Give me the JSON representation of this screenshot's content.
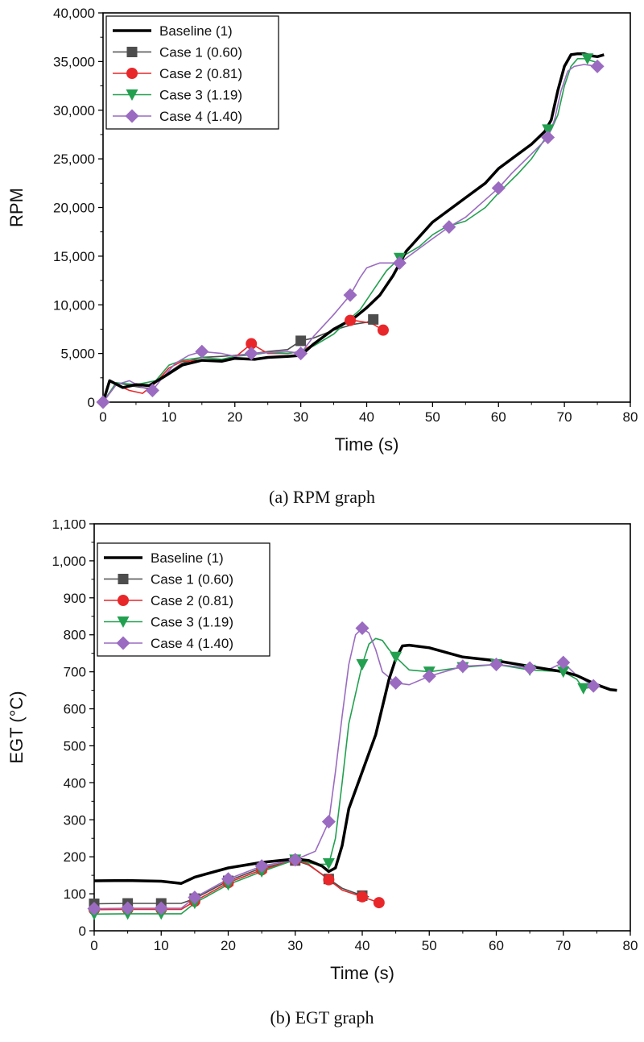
{
  "figures": [
    {
      "caption": "(a)  RPM  graph",
      "chart_data": {
        "type": "line",
        "xlabel": "Time (s)",
        "ylabel": "RPM",
        "xlim": [
          0,
          80
        ],
        "ylim": [
          0,
          40000
        ],
        "xticks": [
          0,
          10,
          20,
          30,
          40,
          50,
          60,
          70,
          80
        ],
        "yticks": [
          0,
          5000,
          10000,
          15000,
          20000,
          25000,
          30000,
          35000,
          40000
        ],
        "ytick_labels": [
          "0",
          "5,000",
          "10,000",
          "15,000",
          "20,000",
          "25,000",
          "30,000",
          "35,000",
          "40,000"
        ],
        "legend_position": "top-left",
        "grid": false,
        "series": [
          {
            "name": "Baseline (1)",
            "color": "#000000",
            "marker": "none",
            "x": [
              0,
              1,
              3,
              5,
              7,
              9,
              12,
              15,
              18,
              20,
              23,
              25,
              28,
              30,
              32,
              35,
              38,
              40,
              42,
              44,
              46,
              48,
              50,
              52,
              55,
              58,
              60,
              62,
              65,
              67,
              68,
              69,
              70,
              71,
              72,
              73,
              74,
              75,
              76
            ],
            "y": [
              0,
              2200,
              1500,
              1800,
              1700,
              2500,
              3800,
              4300,
              4200,
              4500,
              4400,
              4600,
              4700,
              4800,
              6000,
              7500,
              8600,
              9700,
              11000,
              13000,
              15500,
              17000,
              18500,
              19500,
              21000,
              22500,
              24000,
              25000,
              26500,
              27800,
              29000,
              32000,
              34500,
              35700,
              35800,
              35800,
              35600,
              35500,
              35700
            ]
          },
          {
            "name": "Case 1 (0.60)",
            "color": "#4d4d4d",
            "marker": "square",
            "x": [
              0,
              2,
              5,
              7,
              9,
              12,
              15,
              18,
              20,
              23,
              25,
              28,
              30,
              32,
              35,
              38,
              40,
              41
            ],
            "y": [
              0,
              2000,
              1600,
              1400,
              2600,
              4000,
              4600,
              4700,
              4800,
              5000,
              5200,
              5400,
              6300,
              6600,
              7400,
              8000,
              8200,
              8500
            ],
            "marker_x": [
              30,
              41
            ],
            "marker_y": [
              6300,
              8500
            ]
          },
          {
            "name": "Case 2 (0.81)",
            "color": "#e8272a",
            "marker": "circle",
            "x": [
              0,
              2,
              4,
              6,
              8,
              10,
              12,
              15,
              18,
              20,
              22.5,
              25,
              28,
              30,
              32,
              35,
              37,
              38,
              40,
              41,
              42.5
            ],
            "y": [
              0,
              1800,
              1200,
              900,
              2000,
              3500,
              4200,
              4300,
              4200,
              4600,
              6000,
              5000,
              5000,
              5200,
              6000,
              7500,
              8300,
              8400,
              8200,
              8000,
              7400
            ],
            "marker_x": [
              22.5,
              37.5,
              42.5
            ],
            "marker_y": [
              6000,
              8400,
              7400
            ]
          },
          {
            "name": "Case 3 (1.19)",
            "color": "#22a04f",
            "marker": "triangle-down",
            "x": [
              0,
              2,
              5,
              8,
              10,
              12,
              15,
              18,
              20,
              23,
              25,
              28,
              30,
              32,
              35,
              37,
              39,
              41,
              43,
              45,
              48,
              50,
              52,
              55,
              58,
              60,
              63,
              65,
              67,
              68,
              69,
              70,
              71,
              72,
              73,
              74,
              75
            ],
            "y": [
              0,
              2000,
              1800,
              2200,
              3800,
              4300,
              4600,
              4400,
              4700,
              4900,
              5100,
              5000,
              5200,
              5800,
              7000,
              8300,
              9500,
              11500,
              13500,
              14800,
              16000,
              17200,
              18000,
              18600,
              20000,
              21500,
              23500,
              25000,
              27000,
              28000,
              29500,
              32500,
              34500,
              35300,
              35300,
              35100,
              34900
            ],
            "marker_x": [
              45,
              67.5,
              73.5
            ],
            "marker_y": [
              14800,
              28000,
              35300
            ]
          },
          {
            "name": "Case 4 (1.40)",
            "color": "#9a6bc0",
            "marker": "diamond",
            "x": [
              0,
              2,
              4,
              6,
              7.5,
              9,
              11,
              13,
              15,
              18,
              20,
              22.5,
              25,
              28,
              30,
              32,
              35,
              37.5,
              39,
              40,
              42,
              45,
              48,
              50,
              52.5,
              55,
              58,
              60,
              62,
              65,
              67.5,
              68.5,
              69.5,
              70.5,
              71.5,
              73,
              74,
              75
            ],
            "y": [
              0,
              1800,
              2200,
              1500,
              1200,
              2500,
              4000,
              4800,
              5200,
              5000,
              4700,
              5000,
              5100,
              5200,
              5000,
              6800,
              9000,
              11000,
              12800,
              13800,
              14300,
              14300,
              15800,
              16800,
              18000,
              19000,
              20800,
              22000,
              23500,
              25500,
              27200,
              29000,
              32000,
              34000,
              34500,
              34700,
              34600,
              34500
            ],
            "marker_x": [
              0,
              7.5,
              15,
              22.5,
              30,
              37.5,
              45,
              52.5,
              60,
              67.5,
              75
            ],
            "marker_y": [
              0,
              1200,
              5200,
              5000,
              5000,
              11000,
              14300,
              18000,
              22000,
              27200,
              34500
            ]
          }
        ]
      }
    },
    {
      "caption": "(b)  EGT  graph",
      "chart_data": {
        "type": "line",
        "xlabel": "Time (s)",
        "ylabel": "EGT (°C)",
        "xlim": [
          0,
          80
        ],
        "ylim": [
          0,
          1100
        ],
        "xticks": [
          0,
          10,
          20,
          30,
          40,
          50,
          60,
          70,
          80
        ],
        "yticks": [
          0,
          100,
          200,
          300,
          400,
          500,
          600,
          700,
          800,
          900,
          1000,
          1100
        ],
        "ytick_labels": [
          "0",
          "100",
          "200",
          "300",
          "400",
          "500",
          "600",
          "700",
          "800",
          "900",
          "1,000",
          "1,100"
        ],
        "legend_position": "top-left",
        "grid": false,
        "series": [
          {
            "name": "Baseline (1)",
            "color": "#000000",
            "marker": "none",
            "x": [
              0,
              5,
              10,
              13,
              15,
              20,
              25,
              30,
              32,
              34,
              35,
              36,
              37,
              38,
              40,
              42,
              44,
              45,
              46,
              47,
              50,
              55,
              60,
              65,
              70,
              72,
              75,
              77,
              78
            ],
            "y": [
              135,
              136,
              134,
              128,
              145,
              170,
              185,
              194,
              190,
              175,
              160,
              170,
              230,
              330,
              430,
              530,
              680,
              735,
              770,
              772,
              765,
              740,
              730,
              715,
              700,
              690,
              665,
              652,
              650
            ]
          },
          {
            "name": "Case 1 (0.60)",
            "color": "#4d4d4d",
            "marker": "square",
            "x": [
              0,
              5,
              10,
              13,
              15,
              20,
              25,
              30,
              32,
              35,
              37,
              40,
              41
            ],
            "y": [
              73,
              74,
              74,
              74,
              87,
              135,
              170,
              190,
              178,
              140,
              115,
              95,
              92
            ],
            "marker_x": [
              0,
              5,
              10,
              15,
              20,
              25,
              30,
              35,
              40
            ],
            "marker_y": [
              73,
              74,
              74,
              87,
              135,
              170,
              190,
              140,
              95
            ]
          },
          {
            "name": "Case 2 (0.81)",
            "color": "#e8272a",
            "marker": "circle",
            "x": [
              0,
              5,
              10,
              13,
              15,
              20,
              25,
              30,
              32,
              35,
              37,
              40,
              42.5
            ],
            "y": [
              57,
              58,
              58,
              58,
              80,
              130,
              165,
              192,
              180,
              138,
              110,
              92,
              76
            ],
            "marker_x": [
              0,
              5,
              10,
              15,
              20,
              25,
              30,
              35,
              40,
              42.5
            ],
            "marker_y": [
              57,
              58,
              58,
              80,
              130,
              165,
              192,
              138,
              92,
              76
            ]
          },
          {
            "name": "Case 3 (1.19)",
            "color": "#22a04f",
            "marker": "triangle-down",
            "x": [
              0,
              5,
              10,
              13,
              15,
              20,
              25,
              30,
              33,
              35,
              36,
              37,
              38,
              40,
              41,
              42,
              43,
              44,
              45,
              47,
              50,
              55,
              60,
              65,
              70,
              72,
              73,
              75
            ],
            "y": [
              45,
              46,
              46,
              46,
              75,
              125,
              160,
              192,
              180,
              180,
              250,
              400,
              560,
              720,
              775,
              790,
              785,
              760,
              740,
              705,
              700,
              712,
              720,
              705,
              700,
              680,
              655,
              660
            ],
            "marker_x": [
              0,
              5,
              10,
              15,
              20,
              25,
              30,
              35,
              40,
              45,
              50,
              55,
              60,
              65,
              70,
              73
            ],
            "marker_y": [
              45,
              46,
              46,
              75,
              125,
              160,
              192,
              182,
              720,
              740,
              700,
              712,
              720,
              705,
              700,
              655
            ]
          },
          {
            "name": "Case 4 (1.40)",
            "color": "#9a6bc0",
            "marker": "diamond",
            "x": [
              0,
              5,
              10,
              13,
              15,
              20,
              25,
              30,
              33,
              35,
              36,
              37,
              38,
              39,
              40,
              41,
              42,
              43,
              45,
              47,
              50,
              55,
              60,
              65,
              68,
              70,
              72,
              74.5
            ],
            "y": [
              60,
              61,
              61,
              61,
              90,
              140,
              175,
              192,
              215,
              295,
              430,
              580,
              720,
              800,
              818,
              805,
              760,
              700,
              670,
              665,
              688,
              715,
              720,
              710,
              708,
              725,
              690,
              662
            ],
            "marker_x": [
              0,
              5,
              10,
              15,
              20,
              25,
              30,
              35,
              40,
              45,
              50,
              55,
              60,
              65,
              70,
              74.5
            ],
            "marker_y": [
              60,
              61,
              61,
              90,
              140,
              175,
              192,
              295,
              818,
              670,
              688,
              715,
              720,
              710,
              725,
              662
            ]
          }
        ]
      }
    }
  ]
}
